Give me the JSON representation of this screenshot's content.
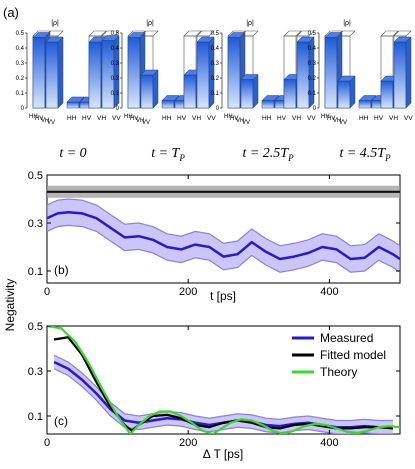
{
  "panel_a": {
    "label": "(a)",
    "rho_label": "|ρ|",
    "tick_labels": [
      "0",
      "0.1",
      "0.2",
      "0.3",
      "0.4",
      "0.5"
    ],
    "row_labels": [
      "HH",
      "HV",
      "VH",
      "VV"
    ],
    "time_labels": [
      {
        "var": "t",
        "eq": "=",
        "val": "0",
        "sub": ""
      },
      {
        "var": "t",
        "eq": "=",
        "val": "T",
        "sub": "P"
      },
      {
        "var": "t",
        "eq": "=",
        "val": "2.5T",
        "sub": "P"
      },
      {
        "var": "t",
        "eq": "=",
        "val": "4.5T",
        "sub": "P"
      }
    ],
    "matrices": [
      {
        "diag": [
          0.47,
          0.04,
          0.04,
          0.45
        ],
        "coh": 0.44
      },
      {
        "diag": [
          0.47,
          0.05,
          0.05,
          0.44
        ],
        "coh": 0.22
      },
      {
        "diag": [
          0.47,
          0.05,
          0.05,
          0.44
        ],
        "coh": 0.19
      },
      {
        "diag": [
          0.47,
          0.05,
          0.05,
          0.44
        ],
        "coh": 0.18
      }
    ],
    "colors": {
      "bar_top": "#1f5bd8",
      "bar_bottom": "#d9e6fb",
      "outline": "#555555"
    }
  },
  "chart_data": [
    {
      "type": "line",
      "panel_label": "(b)",
      "xlabel": "t [ps]",
      "ylabel": "Negativity",
      "xlim": [
        0,
        500
      ],
      "ylim": [
        0.05,
        0.5
      ],
      "xticks": [
        "0",
        "200",
        "400"
      ],
      "yticks": [
        "0.1",
        "0.3",
        "0.5"
      ],
      "series": [
        {
          "color": "#2a16d6",
          "x": [
            0,
            15,
            30,
            50,
            70,
            90,
            110,
            130,
            150,
            170,
            190,
            210,
            230,
            250,
            270,
            290,
            310,
            330,
            350,
            370,
            390,
            410,
            430,
            450,
            470,
            490,
            500
          ],
          "y": [
            0.32,
            0.34,
            0.345,
            0.34,
            0.32,
            0.28,
            0.24,
            0.245,
            0.23,
            0.2,
            0.19,
            0.21,
            0.2,
            0.16,
            0.17,
            0.22,
            0.18,
            0.15,
            0.16,
            0.175,
            0.2,
            0.19,
            0.15,
            0.155,
            0.2,
            0.17,
            0.15
          ]
        },
        {
          "color": "#111111",
          "x": [
            0,
            100,
            200,
            300,
            400,
            500
          ],
          "y": [
            0.43,
            0.43,
            0.43,
            0.43,
            0.43,
            0.43
          ]
        }
      ],
      "band_halfwidth": 0.055,
      "band_color": "#a8a0ee",
      "gray_band_halfwidth": 0.025
    },
    {
      "type": "line",
      "panel_label": "(c)",
      "xlabel": "Δ T [ps]",
      "ylabel": "Negativity",
      "xlim": [
        0,
        500
      ],
      "ylim": [
        0.02,
        0.5
      ],
      "xticks": [
        "0",
        "200",
        "400"
      ],
      "yticks": [
        "0.1",
        "0.3",
        "0.5"
      ],
      "legend_position": "top-right",
      "series": [
        {
          "name": "Measured",
          "color": "#2a16d6",
          "x": [
            10,
            30,
            50,
            70,
            90,
            110,
            130,
            150,
            170,
            190,
            210,
            230,
            250,
            270,
            290,
            310,
            330,
            350,
            370,
            390,
            410,
            430,
            450,
            470,
            490
          ],
          "y": [
            0.34,
            0.31,
            0.26,
            0.2,
            0.13,
            0.08,
            0.07,
            0.08,
            0.09,
            0.085,
            0.07,
            0.06,
            0.07,
            0.08,
            0.075,
            0.06,
            0.055,
            0.065,
            0.07,
            0.06,
            0.05,
            0.05,
            0.055,
            0.05,
            0.05
          ]
        },
        {
          "name": "Fitted model",
          "color": "#000000",
          "x": [
            10,
            30,
            50,
            70,
            90,
            110,
            120,
            130,
            150,
            170,
            190,
            210,
            230,
            250,
            270,
            290,
            310,
            330,
            350,
            370,
            390,
            410,
            430,
            450,
            470,
            490
          ],
          "y": [
            0.44,
            0.45,
            0.37,
            0.25,
            0.14,
            0.06,
            0.035,
            0.06,
            0.1,
            0.105,
            0.09,
            0.06,
            0.05,
            0.07,
            0.08,
            0.07,
            0.05,
            0.045,
            0.06,
            0.065,
            0.055,
            0.045,
            0.045,
            0.05,
            0.05,
            0.045
          ]
        },
        {
          "name": "Theory",
          "color": "#33dd22",
          "x": [
            0,
            20,
            40,
            60,
            80,
            100,
            118,
            130,
            145,
            160,
            175,
            190,
            205,
            220,
            235,
            245,
            260,
            275,
            290,
            305,
            320,
            335,
            350,
            365,
            380,
            395,
            410,
            425,
            440,
            455,
            470,
            485,
            500
          ],
          "y": [
            0.5,
            0.49,
            0.43,
            0.33,
            0.21,
            0.1,
            0.02,
            0.06,
            0.1,
            0.12,
            0.12,
            0.1,
            0.07,
            0.035,
            0.02,
            0.04,
            0.07,
            0.085,
            0.08,
            0.06,
            0.035,
            0.02,
            0.035,
            0.055,
            0.065,
            0.06,
            0.045,
            0.03,
            0.025,
            0.035,
            0.05,
            0.055,
            0.05
          ]
        }
      ],
      "band_halfwidth": 0.03,
      "band_color": "#a8a0ee"
    }
  ]
}
